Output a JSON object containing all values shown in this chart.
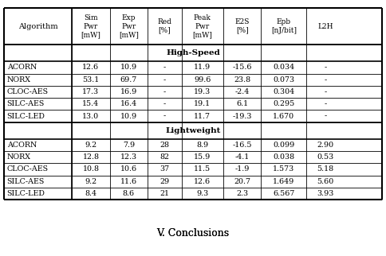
{
  "col_headers": [
    "Algorithm",
    "Sim\nPwr\n[mW]",
    "Exp\nPwr\n[mW]",
    "Red\n[%]",
    "Peak\nPwr\n[mW]",
    "E2S\n[%]",
    "Epb\n[nJ/bit]",
    "L2H"
  ],
  "section_hs": "High-Speed",
  "section_lw": "Lightweight",
  "hs_data": [
    [
      "ACORN",
      "12.6",
      "10.9",
      "-",
      "11.9",
      "-15.6",
      "0.034",
      "-"
    ],
    [
      "NORX",
      "53.1",
      "69.7",
      "-",
      "99.6",
      "23.8",
      "0.073",
      "-"
    ],
    [
      "CLOC-AES",
      "17.3",
      "16.9",
      "-",
      "19.3",
      "-2.4",
      "0.304",
      "-"
    ],
    [
      "SILC-AES",
      "15.4",
      "16.4",
      "-",
      "19.1",
      "6.1",
      "0.295",
      "-"
    ],
    [
      "SILC-LED",
      "13.0",
      "10.9",
      "-",
      "11.7",
      "-19.3",
      "1.670",
      "-"
    ]
  ],
  "lw_data": [
    [
      "ACORN",
      "9.2",
      "7.9",
      "28",
      "8.9",
      "-16.5",
      "0.099",
      "2.90"
    ],
    [
      "NORX",
      "12.8",
      "12.3",
      "82",
      "15.9",
      "-4.1",
      "0.038",
      "0.53"
    ],
    [
      "CLOC-AES",
      "10.8",
      "10.6",
      "37",
      "11.5",
      "-1.9",
      "1.573",
      "5.18"
    ],
    [
      "SILC-AES",
      "9.2",
      "11.6",
      "29",
      "12.6",
      "20.7",
      "1.649",
      "5.60"
    ],
    [
      "SILC-LED",
      "8.4",
      "8.6",
      "21",
      "9.3",
      "2.3",
      "6.567",
      "3.93"
    ]
  ],
  "footer_text": "V. Conclusions",
  "bg_color": "#ffffff",
  "line_color": "#000000",
  "header_bg": "#ffffff",
  "section_bg": "#e8e8e8"
}
